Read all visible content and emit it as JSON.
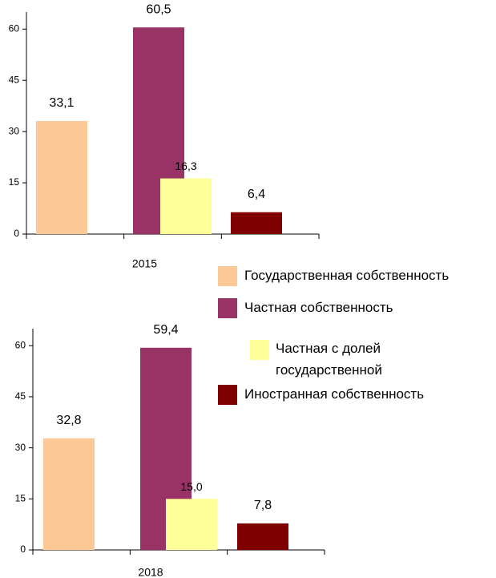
{
  "chart_data": [
    {
      "type": "bar",
      "categories": [
        "2015"
      ],
      "ylim": [
        0,
        65
      ],
      "yticks": [
        0,
        15,
        30,
        45,
        60
      ],
      "series": [
        {
          "name": "Государственная собственность",
          "color": "#fcc896",
          "values": [
            33.1
          ],
          "value_labels": [
            "33,1"
          ]
        },
        {
          "name": "Частная собственность",
          "color": "#993366",
          "values": [
            60.5
          ],
          "value_labels": [
            "60,5"
          ]
        },
        {
          "name": "Частная с долей государственной",
          "color": "#ffff99",
          "values": [
            16.3
          ],
          "value_labels": [
            "16,3"
          ]
        },
        {
          "name": "Иностранная собственность",
          "color": "#800000",
          "values": [
            6.4
          ],
          "value_labels": [
            "6,4"
          ]
        }
      ]
    },
    {
      "type": "bar",
      "categories": [
        "2018"
      ],
      "ylim": [
        0,
        65
      ],
      "yticks": [
        0,
        15,
        30,
        45,
        60
      ],
      "series": [
        {
          "values": [
            32.8
          ],
          "value_labels": [
            "32,8"
          ]
        },
        {
          "values": [
            59.4
          ],
          "value_labels": [
            "59,4"
          ]
        },
        {
          "values": [
            15.0
          ],
          "value_labels": [
            "15,0"
          ]
        },
        {
          "values": [
            7.8
          ],
          "value_labels": [
            "7,8"
          ]
        }
      ]
    }
  ]
}
